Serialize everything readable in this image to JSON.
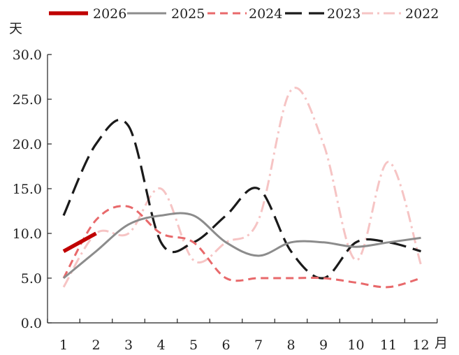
{
  "chart_data": {
    "type": "line",
    "ylabel": "天",
    "xlabel": "月",
    "ylim": [
      0,
      30
    ],
    "yticks": [
      "0.0",
      "5.0",
      "10.0",
      "15.0",
      "20.0",
      "25.0",
      "30.0"
    ],
    "xticks": [
      "1",
      "2",
      "3",
      "4",
      "5",
      "6",
      "7",
      "8",
      "9",
      "10",
      "11",
      "12"
    ],
    "legend_position": "top",
    "series": [
      {
        "name": "2026",
        "color": "#c00000",
        "style": "solid-thick",
        "x": [
          1,
          2
        ],
        "values": [
          8.0,
          10.0
        ]
      },
      {
        "name": "2025",
        "color": "#8c8c8c",
        "style": "solid",
        "x": [
          1,
          2,
          3,
          4,
          5,
          6,
          7,
          8,
          9,
          10,
          11,
          12
        ],
        "values": [
          5.0,
          8.0,
          11.0,
          12.0,
          12.0,
          9.0,
          7.5,
          9.0,
          9.0,
          8.5,
          9.0,
          9.5
        ]
      },
      {
        "name": "2024",
        "color": "#e8696b",
        "style": "dashed",
        "x": [
          1,
          2,
          3,
          4,
          5,
          6,
          7,
          8,
          9,
          10,
          11,
          12
        ],
        "values": [
          5.0,
          11.5,
          13.0,
          10.0,
          9.0,
          5.0,
          5.0,
          5.0,
          5.0,
          4.5,
          4.0,
          5.0
        ]
      },
      {
        "name": "2023",
        "color": "#1a1a1a",
        "style": "longdash",
        "x": [
          1,
          2,
          3,
          4,
          5,
          6,
          7,
          8,
          9,
          10,
          11,
          12
        ],
        "values": [
          12.0,
          20.0,
          22.0,
          9.0,
          9.0,
          12.0,
          15.0,
          8.0,
          5.0,
          9.0,
          9.0,
          8.0
        ]
      },
      {
        "name": "2022",
        "color": "#f6c4c4",
        "style": "dashdot",
        "x": [
          1,
          2,
          3,
          4,
          5,
          6,
          7,
          8,
          9,
          10,
          11,
          12
        ],
        "values": [
          4.0,
          10.0,
          10.0,
          15.0,
          7.0,
          9.0,
          11.5,
          26.0,
          20.0,
          7.0,
          18.0,
          6.5
        ]
      }
    ]
  }
}
